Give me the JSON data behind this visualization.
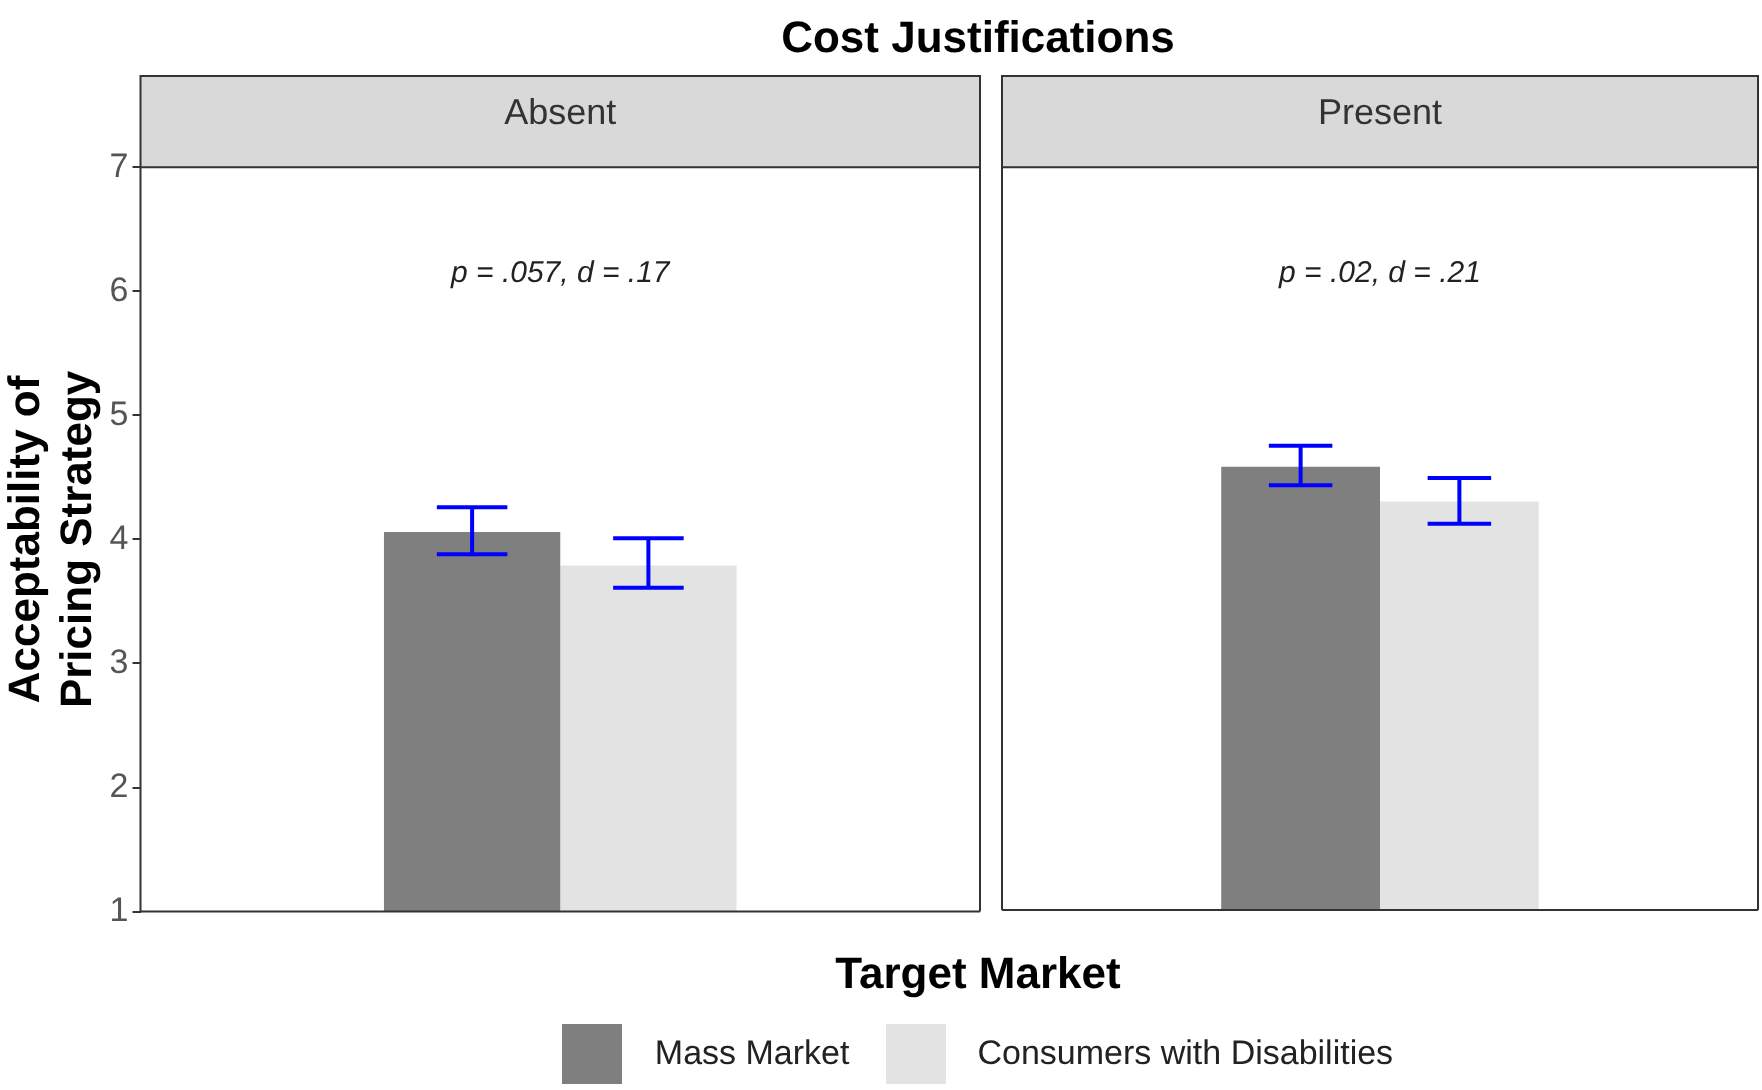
{
  "chart_data": {
    "type": "bar",
    "title": "Cost Justifications",
    "ylabel": "Acceptability of Pricing Strategy",
    "legend_title": "Target Market",
    "categories": [
      "Absent",
      "Present"
    ],
    "series": [
      {
        "name": "Mass Market",
        "color": "#7f7f7f",
        "values": [
          4.06,
          4.58
        ],
        "errors": [
          [
            3.88,
            4.26
          ],
          [
            4.43,
            4.75
          ]
        ]
      },
      {
        "name": "Consumers with Disabilities",
        "color": "#e3e3e3",
        "values": [
          3.79,
          4.3
        ],
        "errors": [
          [
            3.61,
            4.01
          ],
          [
            4.12,
            4.49
          ]
        ]
      }
    ],
    "ylim": [
      1,
      7
    ],
    "yticks": [
      1,
      2,
      3,
      4,
      5,
      6,
      7
    ],
    "legend": "bottom",
    "annotations": [
      "p = .057, d = .17",
      "p = .02, d = .21"
    ]
  }
}
